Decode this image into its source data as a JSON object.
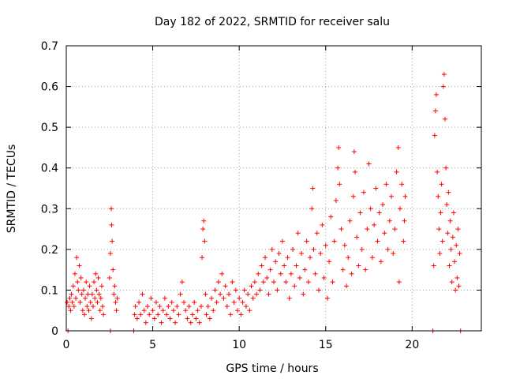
{
  "chart_data": {
    "type": "scatter",
    "title": "Day 182 of 2022, SRMTID for receiver salu",
    "xlabel": "GPS time / hours",
    "ylabel": "SRMTID / TECUs",
    "xlim": [
      0,
      24
    ],
    "ylim": [
      0,
      0.7
    ],
    "x_ticks": [
      0,
      5,
      10,
      15,
      20
    ],
    "x_tick_labels": [
      "0",
      "5",
      "10",
      "15",
      "20"
    ],
    "y_ticks": [
      0,
      0.1,
      0.2,
      0.3,
      0.4,
      0.5,
      0.6,
      0.7
    ],
    "y_tick_labels": [
      "0",
      "0.1",
      "0.2",
      "0.3",
      "0.4",
      "0.5",
      "0.6",
      "0.7"
    ],
    "grid": true,
    "marker": "+",
    "color": "#ff0000",
    "series": [
      {
        "name": "salu",
        "points": [
          [
            0.05,
            0.07
          ],
          [
            0.1,
            0.0
          ],
          [
            0.15,
            0.06
          ],
          [
            0.2,
            0.08
          ],
          [
            0.25,
            0.05
          ],
          [
            0.3,
            0.09
          ],
          [
            0.35,
            0.07
          ],
          [
            0.4,
            0.11
          ],
          [
            0.45,
            0.06
          ],
          [
            0.5,
            0.14
          ],
          [
            0.55,
            0.08
          ],
          [
            0.6,
            0.18
          ],
          [
            0.65,
            0.12
          ],
          [
            0.7,
            0.1
          ],
          [
            0.75,
            0.16
          ],
          [
            0.8,
            0.07
          ],
          [
            0.85,
            0.13
          ],
          [
            0.9,
            0.09
          ],
          [
            0.95,
            0.05
          ],
          [
            1.0,
            0.1
          ],
          [
            1.05,
            0.04
          ],
          [
            1.1,
            0.08
          ],
          [
            1.15,
            0.12
          ],
          [
            1.2,
            0.06
          ],
          [
            1.25,
            0.09
          ],
          [
            1.3,
            0.05
          ],
          [
            1.35,
            0.11
          ],
          [
            1.4,
            0.07
          ],
          [
            1.45,
            0.03
          ],
          [
            1.5,
            0.09
          ],
          [
            1.55,
            0.06
          ],
          [
            1.6,
            0.12
          ],
          [
            1.65,
            0.08
          ],
          [
            1.7,
            0.14
          ],
          [
            1.75,
            0.1
          ],
          [
            1.8,
            0.07
          ],
          [
            1.85,
            0.13
          ],
          [
            1.9,
            0.09
          ],
          [
            1.95,
            0.05
          ],
          [
            2.0,
            0.08
          ],
          [
            2.05,
            0.11
          ],
          [
            2.1,
            0.06
          ],
          [
            2.15,
            0.04
          ],
          [
            2.5,
            0.13
          ],
          [
            2.55,
            0.19
          ],
          [
            2.6,
            0.3
          ],
          [
            2.62,
            0.26
          ],
          [
            2.65,
            0.22
          ],
          [
            2.7,
            0.15
          ],
          [
            2.75,
            0.09
          ],
          [
            2.8,
            0.11
          ],
          [
            2.85,
            0.07
          ],
          [
            2.9,
            0.05
          ],
          [
            2.95,
            0.08
          ],
          [
            2.55,
            0.0
          ],
          [
            3.9,
            0.0
          ],
          [
            3.95,
            0.04
          ],
          [
            4.0,
            0.06
          ],
          [
            4.1,
            0.03
          ],
          [
            4.2,
            0.07
          ],
          [
            4.3,
            0.04
          ],
          [
            4.4,
            0.09
          ],
          [
            4.5,
            0.05
          ],
          [
            4.6,
            0.02
          ],
          [
            4.7,
            0.06
          ],
          [
            4.8,
            0.04
          ],
          [
            4.9,
            0.08
          ],
          [
            5.0,
            0.05
          ],
          [
            5.1,
            0.03
          ],
          [
            5.2,
            0.07
          ],
          [
            5.3,
            0.04
          ],
          [
            5.4,
            0.06
          ],
          [
            5.5,
            0.02
          ],
          [
            5.6,
            0.05
          ],
          [
            5.7,
            0.08
          ],
          [
            5.8,
            0.04
          ],
          [
            5.9,
            0.06
          ],
          [
            6.0,
            0.03
          ],
          [
            6.1,
            0.07
          ],
          [
            6.2,
            0.05
          ],
          [
            6.3,
            0.02
          ],
          [
            6.4,
            0.06
          ],
          [
            6.5,
            0.04
          ],
          [
            6.6,
            0.09
          ],
          [
            6.7,
            0.12
          ],
          [
            6.8,
            0.07
          ],
          [
            6.9,
            0.05
          ],
          [
            7.0,
            0.03
          ],
          [
            7.1,
            0.06
          ],
          [
            7.2,
            0.02
          ],
          [
            7.3,
            0.04
          ],
          [
            7.4,
            0.07
          ],
          [
            7.5,
            0.03
          ],
          [
            7.6,
            0.05
          ],
          [
            7.7,
            0.02
          ],
          [
            7.8,
            0.06
          ],
          [
            7.85,
            0.18
          ],
          [
            7.9,
            0.25
          ],
          [
            7.95,
            0.27
          ],
          [
            8.0,
            0.22
          ],
          [
            8.05,
            0.09
          ],
          [
            8.1,
            0.04
          ],
          [
            8.2,
            0.06
          ],
          [
            8.3,
            0.03
          ],
          [
            8.4,
            0.08
          ],
          [
            8.5,
            0.05
          ],
          [
            8.6,
            0.1
          ],
          [
            8.7,
            0.07
          ],
          [
            8.8,
            0.12
          ],
          [
            8.9,
            0.09
          ],
          [
            9.0,
            0.14
          ],
          [
            9.1,
            0.08
          ],
          [
            9.2,
            0.11
          ],
          [
            9.3,
            0.06
          ],
          [
            9.4,
            0.09
          ],
          [
            9.5,
            0.04
          ],
          [
            9.6,
            0.12
          ],
          [
            9.7,
            0.07
          ],
          [
            9.8,
            0.1
          ],
          [
            9.9,
            0.05
          ],
          [
            10.0,
            0.08
          ],
          [
            10.1,
            0.04
          ],
          [
            10.2,
            0.07
          ],
          [
            10.3,
            0.1
          ],
          [
            10.4,
            0.06
          ],
          [
            10.5,
            0.09
          ],
          [
            10.6,
            0.05
          ],
          [
            10.7,
            0.11
          ],
          [
            10.8,
            0.08
          ],
          [
            10.9,
            0.12
          ],
          [
            11.0,
            0.09
          ],
          [
            11.1,
            0.14
          ],
          [
            11.2,
            0.1
          ],
          [
            11.3,
            0.16
          ],
          [
            11.4,
            0.12
          ],
          [
            11.5,
            0.18
          ],
          [
            11.6,
            0.13
          ],
          [
            11.7,
            0.09
          ],
          [
            11.8,
            0.15
          ],
          [
            11.9,
            0.2
          ],
          [
            12.0,
            0.12
          ],
          [
            12.1,
            0.17
          ],
          [
            12.2,
            0.1
          ],
          [
            12.3,
            0.19
          ],
          [
            12.4,
            0.14
          ],
          [
            12.5,
            0.22
          ],
          [
            12.6,
            0.16
          ],
          [
            12.7,
            0.12
          ],
          [
            12.8,
            0.18
          ],
          [
            12.9,
            0.08
          ],
          [
            13.0,
            0.14
          ],
          [
            13.1,
            0.2
          ],
          [
            13.2,
            0.11
          ],
          [
            13.3,
            0.16
          ],
          [
            13.4,
            0.24
          ],
          [
            13.5,
            0.13
          ],
          [
            13.6,
            0.19
          ],
          [
            13.7,
            0.09
          ],
          [
            13.8,
            0.15
          ],
          [
            13.9,
            0.22
          ],
          [
            14.0,
            0.12
          ],
          [
            14.1,
            0.18
          ],
          [
            14.2,
            0.3
          ],
          [
            14.25,
            0.35
          ],
          [
            14.3,
            0.2
          ],
          [
            14.4,
            0.14
          ],
          [
            14.5,
            0.24
          ],
          [
            14.6,
            0.1
          ],
          [
            14.7,
            0.19
          ],
          [
            14.8,
            0.26
          ],
          [
            14.9,
            0.13
          ],
          [
            15.0,
            0.21
          ],
          [
            15.1,
            0.08
          ],
          [
            15.2,
            0.17
          ],
          [
            15.3,
            0.28
          ],
          [
            15.4,
            0.12
          ],
          [
            15.5,
            0.22
          ],
          [
            15.6,
            0.32
          ],
          [
            15.7,
            0.4
          ],
          [
            15.75,
            0.45
          ],
          [
            15.8,
            0.36
          ],
          [
            15.9,
            0.25
          ],
          [
            16.0,
            0.15
          ],
          [
            16.1,
            0.21
          ],
          [
            16.2,
            0.11
          ],
          [
            16.3,
            0.18
          ],
          [
            16.4,
            0.27
          ],
          [
            16.5,
            0.14
          ],
          [
            16.6,
            0.33
          ],
          [
            16.65,
            0.44
          ],
          [
            16.7,
            0.39
          ],
          [
            16.8,
            0.23
          ],
          [
            16.9,
            0.16
          ],
          [
            17.0,
            0.29
          ],
          [
            17.1,
            0.2
          ],
          [
            17.2,
            0.34
          ],
          [
            17.3,
            0.15
          ],
          [
            17.4,
            0.25
          ],
          [
            17.5,
            0.41
          ],
          [
            17.6,
            0.3
          ],
          [
            17.7,
            0.18
          ],
          [
            17.8,
            0.26
          ],
          [
            17.9,
            0.35
          ],
          [
            18.0,
            0.22
          ],
          [
            18.1,
            0.29
          ],
          [
            18.2,
            0.17
          ],
          [
            18.3,
            0.31
          ],
          [
            18.4,
            0.24
          ],
          [
            18.5,
            0.36
          ],
          [
            18.6,
            0.2
          ],
          [
            18.7,
            0.27
          ],
          [
            18.8,
            0.33
          ],
          [
            18.9,
            0.19
          ],
          [
            19.0,
            0.25
          ],
          [
            19.1,
            0.39
          ],
          [
            19.2,
            0.45
          ],
          [
            19.25,
            0.12
          ],
          [
            19.3,
            0.3
          ],
          [
            19.4,
            0.36
          ],
          [
            19.5,
            0.22
          ],
          [
            19.55,
            0.27
          ],
          [
            19.6,
            0.33
          ],
          [
            21.2,
            0.0
          ],
          [
            21.25,
            0.16
          ],
          [
            21.3,
            0.48
          ],
          [
            21.35,
            0.54
          ],
          [
            21.4,
            0.58
          ],
          [
            21.45,
            0.39
          ],
          [
            21.5,
            0.33
          ],
          [
            21.55,
            0.25
          ],
          [
            21.6,
            0.19
          ],
          [
            21.65,
            0.29
          ],
          [
            21.7,
            0.36
          ],
          [
            21.75,
            0.22
          ],
          [
            21.8,
            0.6
          ],
          [
            21.85,
            0.63
          ],
          [
            21.9,
            0.52
          ],
          [
            21.95,
            0.4
          ],
          [
            22.0,
            0.31
          ],
          [
            22.05,
            0.24
          ],
          [
            22.1,
            0.34
          ],
          [
            22.15,
            0.16
          ],
          [
            22.2,
            0.27
          ],
          [
            22.25,
            0.2
          ],
          [
            22.3,
            0.12
          ],
          [
            22.35,
            0.23
          ],
          [
            22.4,
            0.29
          ],
          [
            22.45,
            0.17
          ],
          [
            22.5,
            0.1
          ],
          [
            22.55,
            0.21
          ],
          [
            22.6,
            0.13
          ],
          [
            22.65,
            0.25
          ],
          [
            22.7,
            0.11
          ],
          [
            22.75,
            0.19
          ],
          [
            22.8,
            0.0
          ]
        ]
      }
    ]
  }
}
